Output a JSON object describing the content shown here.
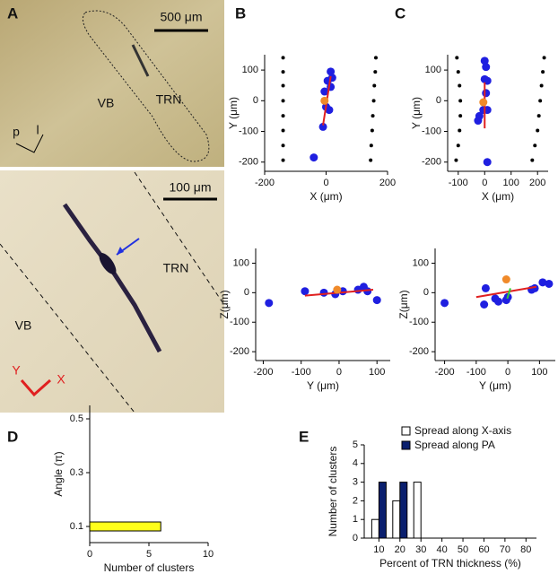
{
  "panel_labels": [
    "A",
    "B",
    "C",
    "D",
    "E"
  ],
  "images": [
    {
      "scale_bar": "500 μm",
      "labels": [
        "VB",
        "TRN"
      ],
      "axes": [
        "p",
        "l"
      ]
    },
    {
      "scale_bar": "100 μm",
      "labels": [
        "TRN",
        "VB"
      ],
      "axes": [
        "Y",
        "X"
      ]
    }
  ],
  "chart_data": [
    {
      "type": "scatter",
      "xlabel": "X (μm)",
      "ylabel": "Y (μm)",
      "xlim": [
        -200,
        200
      ],
      "xticks": [
        -200,
        0,
        200
      ],
      "ylim": [
        -230,
        150
      ],
      "yticks": [
        100,
        0,
        -100,
        -200
      ],
      "series": [
        {
          "color": "#000000",
          "marker": "dot",
          "x": [
            -140,
            -140,
            -140,
            -140,
            -140,
            -140,
            -140,
            -140
          ],
          "y": [
            140,
            94,
            49,
            0,
            -49,
            -97,
            -146,
            -194
          ]
        },
        {
          "color": "#000000",
          "marker": "dot",
          "x": [
            162,
            160,
            157,
            155,
            152,
            150,
            147,
            145
          ],
          "y": [
            140,
            94,
            49,
            0,
            -49,
            -97,
            -146,
            -194
          ]
        },
        {
          "color": "#1f1fe0",
          "marker": "circle",
          "x": [
            15,
            20,
            5,
            15,
            -5,
            10,
            0,
            -10,
            -40
          ],
          "y": [
            95,
            75,
            65,
            45,
            30,
            -30,
            -20,
            -85,
            -185
          ]
        },
        {
          "color": "#e02020",
          "marker": "line",
          "x": [
            -10,
            15
          ],
          "y": [
            -80,
            80
          ]
        },
        {
          "color": "#f08a2a",
          "marker": "circle",
          "x": [
            -5
          ],
          "y": [
            0
          ]
        }
      ]
    },
    {
      "type": "scatter",
      "xlabel": "Y (μm)",
      "ylabel": "Z(μm)",
      "xlim": [
        -220,
        135
      ],
      "xticks": [
        -200,
        -100,
        0,
        100
      ],
      "ylim": [
        -230,
        150
      ],
      "yticks": [
        100,
        0,
        -100,
        -200
      ],
      "series": [
        {
          "color": "#1f1fe0",
          "marker": "circle",
          "x": [
            -185,
            -90,
            -40,
            -10,
            10,
            50,
            65,
            75,
            100
          ],
          "y": [
            -35,
            5,
            0,
            -5,
            5,
            10,
            20,
            5,
            -25
          ]
        },
        {
          "color": "#e02020",
          "marker": "line",
          "x": [
            -90,
            90
          ],
          "y": [
            -10,
            10
          ]
        },
        {
          "color": "#f08a2a",
          "marker": "circle",
          "x": [
            -5
          ],
          "y": [
            10
          ]
        }
      ]
    },
    {
      "type": "scatter",
      "xlabel": "X (μm)",
      "ylabel": "Y (μm)",
      "xlim": [
        -140,
        240
      ],
      "xticks": [
        -100,
        0,
        100,
        200
      ],
      "ylim": [
        -230,
        150
      ],
      "yticks": [
        100,
        0,
        -100,
        -200
      ],
      "series": [
        {
          "color": "#000000",
          "marker": "dot",
          "x": [
            -105,
            -100,
            -95,
            -92,
            -92,
            -95,
            -100,
            -108
          ],
          "y": [
            140,
            94,
            49,
            0,
            -49,
            -97,
            -146,
            -194
          ]
        },
        {
          "color": "#000000",
          "marker": "dot",
          "x": [
            225,
            220,
            215,
            210,
            205,
            200,
            190,
            180
          ],
          "y": [
            140,
            94,
            49,
            0,
            -49,
            -97,
            -146,
            -194
          ]
        },
        {
          "color": "#1f1fe0",
          "marker": "circle",
          "x": [
            0,
            5,
            0,
            10,
            5,
            -5,
            10,
            -20,
            -25,
            10
          ],
          "y": [
            130,
            110,
            70,
            65,
            25,
            -30,
            -30,
            -50,
            -65,
            -200
          ]
        },
        {
          "color": "#e02020",
          "marker": "line",
          "x": [
            0,
            0
          ],
          "y": [
            -90,
            60
          ]
        },
        {
          "color": "#f08a2a",
          "marker": "circle",
          "x": [
            -5
          ],
          "y": [
            -5
          ]
        }
      ]
    },
    {
      "type": "scatter",
      "xlabel": "Y (μm)",
      "ylabel": "Z(μm)",
      "xlim": [
        -230,
        150
      ],
      "xticks": [
        -200,
        -100,
        0,
        100
      ],
      "ylim": [
        -230,
        150
      ],
      "yticks": [
        100,
        0,
        -100,
        -200
      ],
      "series": [
        {
          "color": "#1f1fe0",
          "marker": "circle",
          "x": [
            -200,
            -75,
            -70,
            -40,
            -30,
            -5,
            0,
            75,
            85,
            110,
            130
          ],
          "y": [
            -35,
            -40,
            15,
            -20,
            -30,
            -25,
            -15,
            10,
            15,
            35,
            30
          ]
        },
        {
          "color": "#e02020",
          "marker": "line",
          "x": [
            -100,
            90
          ],
          "y": [
            -15,
            20
          ]
        },
        {
          "color": "#33cc33",
          "marker": "line",
          "x": [
            -2,
            8
          ],
          "y": [
            -20,
            15
          ]
        },
        {
          "color": "#f08a2a",
          "marker": "circle",
          "x": [
            -5
          ],
          "y": [
            45
          ]
        }
      ]
    },
    {
      "type": "bar",
      "orientation": "horizontal",
      "xlabel": "Number of clusters",
      "ylabel": "Angle (π)",
      "y": [
        0.1
      ],
      "values": [
        6
      ],
      "color": "#ffff1a",
      "xlim": [
        0,
        10
      ],
      "xticks": [
        0,
        5,
        10
      ],
      "ylim": [
        0.04,
        0.55
      ],
      "yticks": [
        0.1,
        0.3,
        0.5
      ]
    },
    {
      "type": "bar",
      "orientation": "vertical",
      "xlabel": "Percent of TRN thickness (%)",
      "ylabel": "Number of clusters",
      "x": [
        10,
        20,
        30
      ],
      "series": [
        {
          "name": "Spread along X-axis",
          "color": "#ffffff",
          "values": [
            1,
            2,
            3
          ]
        },
        {
          "name": "Spread along PA",
          "color": "#0a1f6e",
          "values": [
            3,
            3,
            null
          ]
        }
      ],
      "xlim": [
        3,
        85
      ],
      "xticks": [
        10,
        20,
        30,
        40,
        50,
        60,
        70,
        80
      ],
      "ylim": [
        0,
        5
      ],
      "yticks": [
        0,
        1,
        2,
        3,
        4,
        5
      ]
    }
  ]
}
